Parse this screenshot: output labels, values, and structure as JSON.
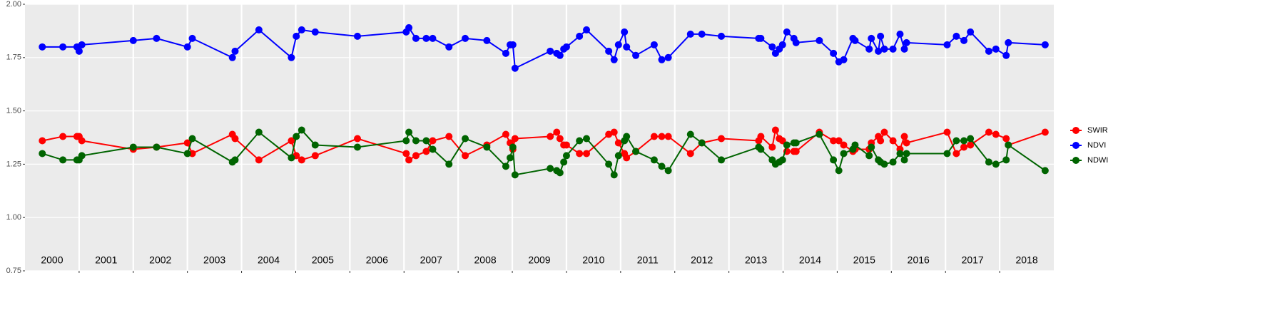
{
  "chart_data": {
    "type": "line",
    "x": [
      2000.32,
      2000.7,
      2000.96,
      2001.0,
      2001.05,
      2002.0,
      2002.43,
      2003.0,
      2003.09,
      2003.83,
      2003.88,
      2004.32,
      2004.92,
      2005.01,
      2005.11,
      2005.36,
      2006.14,
      2007.04,
      2007.09,
      2007.22,
      2007.41,
      2007.53,
      2007.83,
      2008.13,
      2008.53,
      2008.88,
      2008.96,
      2009.01,
      2009.05,
      2009.7,
      2009.82,
      2009.88,
      2009.95,
      2010.0,
      2010.24,
      2010.37,
      2010.78,
      2010.88,
      2010.96,
      2011.07,
      2011.11,
      2011.28,
      2011.62,
      2011.76,
      2011.88,
      2012.29,
      2012.5,
      2012.86,
      2013.55,
      2013.59,
      2013.8,
      2013.86,
      2013.93,
      2013.99,
      2014.07,
      2014.2,
      2014.24,
      2014.67,
      2014.93,
      2015.03,
      2015.12,
      2015.29,
      2015.33,
      2015.59,
      2015.63,
      2015.76,
      2015.8,
      2015.87,
      2016.03,
      2016.16,
      2016.24,
      2016.28,
      2017.03,
      2017.2,
      2017.34,
      2017.46,
      2017.8,
      2017.93,
      2018.12,
      2018.16,
      2018.84
    ],
    "series": [
      {
        "name": "SWIR",
        "color": "#ff0000",
        "values": [
          1.36,
          1.38,
          1.38,
          1.38,
          1.36,
          1.32,
          1.33,
          1.35,
          1.3,
          1.39,
          1.37,
          1.27,
          1.36,
          1.29,
          1.27,
          1.29,
          1.37,
          1.3,
          1.27,
          1.29,
          1.31,
          1.36,
          1.38,
          1.29,
          1.34,
          1.39,
          1.35,
          1.32,
          1.37,
          1.38,
          1.4,
          1.37,
          1.34,
          1.34,
          1.3,
          1.3,
          1.39,
          1.4,
          1.35,
          1.3,
          1.28,
          1.31,
          1.38,
          1.38,
          1.38,
          1.3,
          1.35,
          1.37,
          1.36,
          1.38,
          1.33,
          1.41,
          1.37,
          1.36,
          1.31,
          1.31,
          1.31,
          1.4,
          1.36,
          1.36,
          1.34,
          1.31,
          1.32,
          1.32,
          1.35,
          1.38,
          1.36,
          1.4,
          1.36,
          1.32,
          1.38,
          1.35,
          1.4,
          1.3,
          1.33,
          1.34,
          1.4,
          1.39,
          1.37,
          1.34,
          1.4
        ]
      },
      {
        "name": "NDVI",
        "color": "#0000ff",
        "values": [
          1.8,
          1.8,
          1.8,
          1.78,
          1.81,
          1.83,
          1.84,
          1.8,
          1.84,
          1.75,
          1.78,
          1.88,
          1.75,
          1.85,
          1.88,
          1.87,
          1.85,
          1.87,
          1.89,
          1.84,
          1.84,
          1.84,
          1.8,
          1.84,
          1.83,
          1.77,
          1.81,
          1.81,
          1.7,
          1.78,
          1.77,
          1.76,
          1.79,
          1.8,
          1.85,
          1.88,
          1.78,
          1.74,
          1.81,
          1.87,
          1.8,
          1.76,
          1.81,
          1.74,
          1.75,
          1.86,
          1.86,
          1.85,
          1.84,
          1.84,
          1.8,
          1.77,
          1.79,
          1.81,
          1.87,
          1.84,
          1.82,
          1.83,
          1.77,
          1.73,
          1.74,
          1.84,
          1.83,
          1.79,
          1.84,
          1.78,
          1.85,
          1.79,
          1.79,
          1.86,
          1.79,
          1.82,
          1.81,
          1.85,
          1.83,
          1.87,
          1.78,
          1.79,
          1.76,
          1.82,
          1.81
        ]
      },
      {
        "name": "NDWI",
        "color": "#006400",
        "values": [
          1.3,
          1.27,
          1.27,
          1.27,
          1.29,
          1.33,
          1.33,
          1.3,
          1.37,
          1.26,
          1.27,
          1.4,
          1.28,
          1.38,
          1.41,
          1.34,
          1.33,
          1.36,
          1.4,
          1.36,
          1.36,
          1.32,
          1.25,
          1.37,
          1.33,
          1.24,
          1.28,
          1.33,
          1.2,
          1.23,
          1.22,
          1.21,
          1.26,
          1.29,
          1.36,
          1.37,
          1.25,
          1.2,
          1.29,
          1.36,
          1.38,
          1.31,
          1.27,
          1.24,
          1.22,
          1.39,
          1.35,
          1.27,
          1.33,
          1.32,
          1.27,
          1.25,
          1.26,
          1.27,
          1.34,
          1.35,
          1.35,
          1.39,
          1.27,
          1.22,
          1.3,
          1.32,
          1.34,
          1.29,
          1.33,
          1.27,
          1.26,
          1.25,
          1.26,
          1.3,
          1.27,
          1.3,
          1.3,
          1.36,
          1.36,
          1.37,
          1.26,
          1.25,
          1.27,
          1.34,
          1.22
        ]
      }
    ],
    "xlim": [
      2000,
      2019
    ],
    "xticks": [
      2001,
      2002,
      2003,
      2004,
      2005,
      2006,
      2007,
      2008,
      2009,
      2010,
      2011,
      2012,
      2013,
      2014,
      2015,
      2016,
      2017,
      2018
    ],
    "year_labels": [
      {
        "value": 2000.5,
        "label": "2000"
      },
      {
        "value": 2001.5,
        "label": "2001"
      },
      {
        "value": 2002.5,
        "label": "2002"
      },
      {
        "value": 2003.5,
        "label": "2003"
      },
      {
        "value": 2004.5,
        "label": "2004"
      },
      {
        "value": 2005.5,
        "label": "2005"
      },
      {
        "value": 2006.5,
        "label": "2006"
      },
      {
        "value": 2007.5,
        "label": "2007"
      },
      {
        "value": 2008.5,
        "label": "2008"
      },
      {
        "value": 2009.5,
        "label": "2009"
      },
      {
        "value": 2010.5,
        "label": "2010"
      },
      {
        "value": 2011.5,
        "label": "2011"
      },
      {
        "value": 2012.5,
        "label": "2012"
      },
      {
        "value": 2013.5,
        "label": "2013"
      },
      {
        "value": 2014.5,
        "label": "2014"
      },
      {
        "value": 2015.5,
        "label": "2015"
      },
      {
        "value": 2016.5,
        "label": "2016"
      },
      {
        "value": 2017.5,
        "label": "2017"
      },
      {
        "value": 2018.5,
        "label": "2018"
      }
    ],
    "ylim": [
      0.75,
      2.0
    ],
    "yticks": [
      0.75,
      {
        "value": 1.0,
        "label": "1.00"
      },
      1.25,
      {
        "value": 1.5,
        "label": "1.50"
      },
      1.75,
      {
        "value": 2.0,
        "label": "2.00"
      }
    ],
    "grid": true,
    "legend": "right"
  }
}
